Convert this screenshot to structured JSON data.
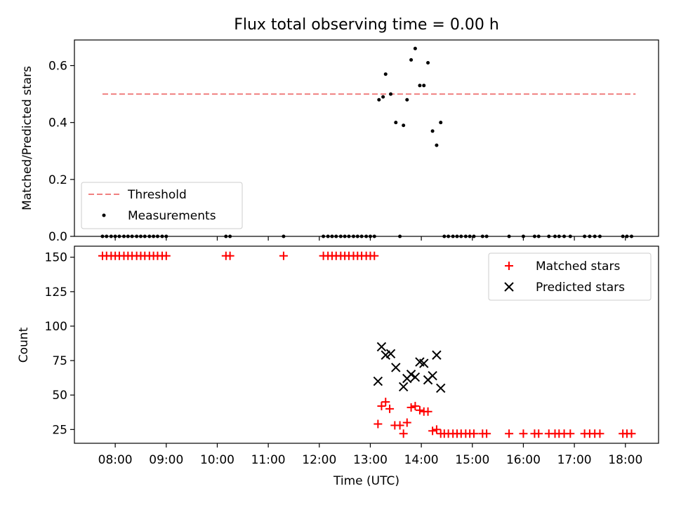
{
  "chart_data": [
    {
      "type": "scatter",
      "title": "Flux total observing time = 0.00 h",
      "ylabel": "Matched/Predicted stars",
      "xlabel": "",
      "ylim": [
        0,
        0.69
      ],
      "yticks": [
        0.0,
        0.2,
        0.4,
        0.6
      ],
      "ytick_labels": [
        "0.0",
        "0.2",
        "0.4",
        "0.6"
      ],
      "legend_position": "lower-left",
      "series": [
        {
          "name": "Threshold",
          "kind": "line",
          "style": "dashed",
          "color": "#f08080",
          "x": [
            7.75,
            18.2
          ],
          "y": [
            0.5,
            0.5
          ]
        },
        {
          "name": "Measurements",
          "kind": "scatter",
          "marker": "dot",
          "color": "#000000",
          "x": [
            7.75,
            7.83,
            7.92,
            8.0,
            8.08,
            8.17,
            8.25,
            8.33,
            8.42,
            8.5,
            8.58,
            8.67,
            8.75,
            8.83,
            8.92,
            9.0,
            10.17,
            10.25,
            11.3,
            12.08,
            12.17,
            12.25,
            12.33,
            12.42,
            12.5,
            12.58,
            12.67,
            12.75,
            12.83,
            12.92,
            13.0,
            13.08,
            13.17,
            13.25,
            13.3,
            13.4,
            13.5,
            13.58,
            13.65,
            13.72,
            13.8,
            13.88,
            13.97,
            14.05,
            14.13,
            14.22,
            14.3,
            14.38,
            14.45,
            14.53,
            14.62,
            14.7,
            14.78,
            14.87,
            14.95,
            15.03,
            15.2,
            15.28,
            15.72,
            16.0,
            16.22,
            16.3,
            16.5,
            16.62,
            16.7,
            16.8,
            16.92,
            17.2,
            17.3,
            17.4,
            17.5,
            17.95,
            18.03,
            18.12
          ],
          "y": [
            0,
            0,
            0,
            0,
            0,
            0,
            0,
            0,
            0,
            0,
            0,
            0,
            0,
            0,
            0,
            0,
            0,
            0,
            0,
            0,
            0,
            0,
            0,
            0,
            0,
            0,
            0,
            0,
            0,
            0,
            0,
            0,
            0.48,
            0.49,
            0.57,
            0.5,
            0.4,
            0,
            0.39,
            0.48,
            0.62,
            0.66,
            0.53,
            0.53,
            0.61,
            0.37,
            0.32,
            0.4,
            0,
            0,
            0,
            0,
            0,
            0,
            0,
            0,
            0,
            0,
            0,
            0,
            0,
            0,
            0,
            0,
            0,
            0,
            0,
            0,
            0,
            0,
            0,
            0,
            0,
            0
          ]
        }
      ]
    },
    {
      "type": "scatter",
      "title": "",
      "ylabel": "Count",
      "xlabel": "Time (UTC)",
      "xlim": [
        7.2,
        18.65
      ],
      "ylim": [
        15,
        158
      ],
      "yticks": [
        25,
        50,
        75,
        100,
        125,
        150
      ],
      "ytick_labels": [
        "25",
        "50",
        "75",
        "100",
        "125",
        "150"
      ],
      "xticks": [
        8,
        9,
        10,
        11,
        12,
        13,
        14,
        15,
        16,
        17,
        18
      ],
      "xtick_labels": [
        "08:00",
        "09:00",
        "10:00",
        "11:00",
        "12:00",
        "13:00",
        "14:00",
        "15:00",
        "16:00",
        "17:00",
        "18:00"
      ],
      "legend_position": "top-right",
      "series": [
        {
          "name": "Matched stars",
          "kind": "scatter",
          "marker": "plus",
          "color": "#ff0000",
          "x": [
            7.75,
            7.83,
            7.92,
            8.0,
            8.08,
            8.17,
            8.25,
            8.33,
            8.42,
            8.5,
            8.58,
            8.67,
            8.75,
            8.83,
            8.92,
            9.0,
            10.17,
            10.25,
            11.3,
            12.08,
            12.17,
            12.25,
            12.33,
            12.42,
            12.5,
            12.58,
            12.67,
            12.75,
            12.83,
            12.92,
            13.0,
            13.08,
            13.15,
            13.22,
            13.3,
            13.38,
            13.48,
            13.58,
            13.65,
            13.72,
            13.8,
            13.88,
            13.97,
            14.05,
            14.13,
            14.22,
            14.3,
            14.38,
            14.45,
            14.53,
            14.62,
            14.7,
            14.78,
            14.87,
            14.95,
            15.03,
            15.2,
            15.28,
            15.72,
            16.0,
            16.22,
            16.3,
            16.5,
            16.62,
            16.7,
            16.8,
            16.92,
            17.2,
            17.3,
            17.4,
            17.5,
            17.95,
            18.03,
            18.12
          ],
          "y": [
            151,
            151,
            151,
            151,
            151,
            151,
            151,
            151,
            151,
            151,
            151,
            151,
            151,
            151,
            151,
            151,
            151,
            151,
            151,
            151,
            151,
            151,
            151,
            151,
            151,
            151,
            151,
            151,
            151,
            151,
            151,
            151,
            29,
            42,
            45,
            40,
            28,
            28,
            22,
            30,
            41,
            42,
            39,
            38,
            38,
            24,
            25,
            22,
            22,
            22,
            22,
            22,
            22,
            22,
            22,
            22,
            22,
            22,
            22,
            22,
            22,
            22,
            22,
            22,
            22,
            22,
            22,
            22,
            22,
            22,
            22,
            22,
            22,
            22
          ]
        },
        {
          "name": "Predicted stars",
          "kind": "scatter",
          "marker": "x",
          "color": "#000000",
          "x": [
            13.15,
            13.22,
            13.3,
            13.4,
            13.5,
            13.65,
            13.72,
            13.8,
            13.88,
            13.97,
            14.05,
            14.13,
            14.22,
            14.3,
            14.38
          ],
          "y": [
            60,
            85,
            79,
            80,
            70,
            56,
            62,
            65,
            63,
            74,
            73,
            61,
            64,
            79,
            55
          ]
        }
      ]
    }
  ]
}
